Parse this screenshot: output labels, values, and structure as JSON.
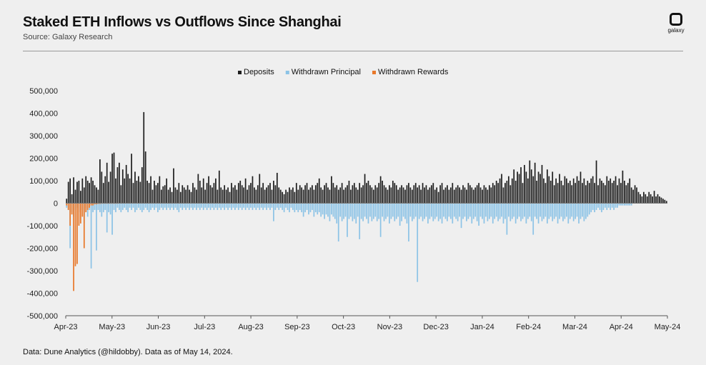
{
  "header": {
    "title": "Staked ETH Inflows vs Outflows Since Shanghai",
    "source": "Source: Galaxy Research",
    "logo_text": "galaxy"
  },
  "footnote": "Data: Dune Analytics (@hildobby). Data as of May 14, 2024.",
  "colors": {
    "deposits": "#1f1f1f",
    "withdrawn_principal": "#8cc3e6",
    "withdrawn_rewards": "#e8782a",
    "background": "#efefef"
  },
  "chart_data": {
    "type": "bar",
    "title": "Staked ETH Inflows vs Outflows Since Shanghai",
    "xlabel": "",
    "ylabel": "",
    "ylim": [
      -500000,
      500000
    ],
    "yticks": [
      500000,
      400000,
      300000,
      200000,
      100000,
      0,
      -100000,
      -200000,
      -300000,
      -400000,
      -500000
    ],
    "ytick_labels": [
      "500,000",
      "400,000",
      "300,000",
      "200,000",
      "100,000",
      "0",
      "-100,000",
      "-200,000",
      "-300,000",
      "-400,000",
      "-500,000"
    ],
    "xtick_labels": [
      "Apr-23",
      "May-23",
      "Jun-23",
      "Jul-23",
      "Aug-23",
      "Sep-23",
      "Oct-23",
      "Nov-23",
      "Dec-23",
      "Jan-24",
      "Feb-24",
      "Mar-24",
      "Apr-24",
      "May-24"
    ],
    "legend": [
      "Deposits",
      "Withdrawn Principal",
      "Withdrawn Rewards"
    ],
    "legend_position": "top-center",
    "series": [
      {
        "name": "Deposits",
        "key": "deposits",
        "color": "#1f1f1f",
        "values": [
          20000,
          95000,
          110000,
          40000,
          115000,
          60000,
          95000,
          100000,
          55000,
          110000,
          70000,
          120000,
          100000,
          90000,
          115000,
          100000,
          80000,
          70000,
          60000,
          195000,
          140000,
          90000,
          120000,
          180000,
          95000,
          140000,
          220000,
          225000,
          110000,
          160000,
          180000,
          80000,
          150000,
          110000,
          170000,
          130000,
          110000,
          220000,
          90000,
          140000,
          100000,
          120000,
          95000,
          160000,
          405000,
          230000,
          100000,
          90000,
          120000,
          60000,
          100000,
          80000,
          90000,
          120000,
          60000,
          75000,
          80000,
          110000,
          60000,
          70000,
          50000,
          155000,
          70000,
          60000,
          90000,
          50000,
          80000,
          70000,
          60000,
          80000,
          60000,
          50000,
          90000,
          70000,
          60000,
          130000,
          100000,
          70000,
          110000,
          60000,
          90000,
          120000,
          80000,
          70000,
          90000,
          110000,
          60000,
          145000,
          70000,
          60000,
          80000,
          60000,
          70000,
          50000,
          90000,
          70000,
          80000,
          60000,
          90000,
          100000,
          80000,
          70000,
          110000,
          60000,
          80000,
          90000,
          120000,
          70000,
          60000,
          80000,
          130000,
          70000,
          90000,
          60000,
          70000,
          80000,
          90000,
          60000,
          100000,
          80000,
          135000,
          70000,
          60000,
          50000,
          40000,
          60000,
          50000,
          70000,
          60000,
          70000,
          50000,
          90000,
          60000,
          80000,
          70000,
          60000,
          80000,
          90000,
          60000,
          70000,
          80000,
          60000,
          80000,
          90000,
          110000,
          70000,
          60000,
          80000,
          90000,
          70000,
          60000,
          120000,
          90000,
          70000,
          80000,
          60000,
          70000,
          90000,
          60000,
          70000,
          80000,
          100000,
          60000,
          80000,
          90000,
          70000,
          60000,
          90000,
          70000,
          80000,
          130000,
          90000,
          100000,
          80000,
          70000,
          60000,
          80000,
          70000,
          90000,
          120000,
          100000,
          80000,
          70000,
          60000,
          80000,
          70000,
          100000,
          90000,
          80000,
          60000,
          70000,
          80000,
          70000,
          60000,
          80000,
          90000,
          70000,
          60000,
          80000,
          90000,
          70000,
          80000,
          60000,
          90000,
          70000,
          80000,
          60000,
          70000,
          80000,
          90000,
          60000,
          70000,
          50000,
          80000,
          90000,
          60000,
          70000,
          80000,
          60000,
          70000,
          90000,
          60000,
          70000,
          80000,
          70000,
          60000,
          80000,
          70000,
          60000,
          90000,
          80000,
          70000,
          60000,
          70000,
          80000,
          90000,
          70000,
          60000,
          80000,
          70000,
          60000,
          80000,
          70000,
          90000,
          80000,
          100000,
          90000,
          110000,
          130000,
          70000,
          90000,
          100000,
          120000,
          80000,
          110000,
          150000,
          100000,
          140000,
          130000,
          160000,
          90000,
          170000,
          140000,
          110000,
          190000,
          150000,
          120000,
          180000,
          100000,
          140000,
          130000,
          170000,
          110000,
          90000,
          150000,
          120000,
          100000,
          140000,
          80000,
          110000,
          90000,
          130000,
          100000,
          80000,
          120000,
          110000,
          90000,
          100000,
          80000,
          110000,
          90000,
          120000,
          100000,
          140000,
          90000,
          110000,
          80000,
          100000,
          90000,
          110000,
          120000,
          90000,
          190000,
          80000,
          110000,
          100000,
          90000,
          80000,
          120000,
          100000,
          110000,
          90000,
          100000,
          120000,
          80000,
          110000,
          90000,
          145000,
          100000,
          80000,
          90000,
          110000,
          70000,
          60000,
          80000,
          70000,
          50000,
          40000,
          30000,
          50000,
          40000,
          30000,
          50000,
          40000,
          30000,
          55000,
          30000,
          40000,
          30000,
          25000,
          20000,
          15000,
          10000
        ]
      },
      {
        "name": "Withdrawn Principal",
        "key": "withdrawn_principal",
        "color": "#8cc3e6",
        "values": [
          -20000,
          -30000,
          -200000,
          -40000,
          -60000,
          -30000,
          -20000,
          -40000,
          -30000,
          -30000,
          -90000,
          -20000,
          -60000,
          -30000,
          -290000,
          -40000,
          -30000,
          -210000,
          -30000,
          -40000,
          -60000,
          -40000,
          -30000,
          -130000,
          -40000,
          -50000,
          -140000,
          -30000,
          -40000,
          -20000,
          -30000,
          -40000,
          -30000,
          -20000,
          -30000,
          -40000,
          -20000,
          -30000,
          -20000,
          -40000,
          -30000,
          -20000,
          -30000,
          -40000,
          -30000,
          -20000,
          -30000,
          -40000,
          -30000,
          -20000,
          -30000,
          -20000,
          -40000,
          -30000,
          -20000,
          -30000,
          -20000,
          -30000,
          -20000,
          -30000,
          -20000,
          -30000,
          -20000,
          -30000,
          -40000,
          -20000,
          -30000,
          -20000,
          -30000,
          -20000,
          -30000,
          -20000,
          -30000,
          -20000,
          -30000,
          -20000,
          -30000,
          -20000,
          -30000,
          -20000,
          -30000,
          -20000,
          -30000,
          -20000,
          -30000,
          -20000,
          -30000,
          -20000,
          -30000,
          -20000,
          -30000,
          -20000,
          -30000,
          -20000,
          -30000,
          -20000,
          -30000,
          -20000,
          -30000,
          -20000,
          -30000,
          -20000,
          -30000,
          -20000,
          -30000,
          -20000,
          -30000,
          -20000,
          -30000,
          -20000,
          -30000,
          -20000,
          -30000,
          -20000,
          -30000,
          -20000,
          -30000,
          -20000,
          -80000,
          -30000,
          -20000,
          -30000,
          -20000,
          -30000,
          -40000,
          -20000,
          -30000,
          -40000,
          -20000,
          -30000,
          -40000,
          -30000,
          -40000,
          -30000,
          -40000,
          -60000,
          -40000,
          -30000,
          -50000,
          -40000,
          -30000,
          -60000,
          -40000,
          -50000,
          -40000,
          -60000,
          -50000,
          -70000,
          -50000,
          -60000,
          -80000,
          -50000,
          -60000,
          -70000,
          -90000,
          -170000,
          -60000,
          -80000,
          -70000,
          -60000,
          -150000,
          -70000,
          -60000,
          -80000,
          -70000,
          -90000,
          -60000,
          -160000,
          -70000,
          -80000,
          -60000,
          -70000,
          -90000,
          -60000,
          -80000,
          -70000,
          -60000,
          -80000,
          -70000,
          -150000,
          -60000,
          -80000,
          -70000,
          -60000,
          -90000,
          -70000,
          -60000,
          -80000,
          -70000,
          -60000,
          -100000,
          -80000,
          -60000,
          -70000,
          -90000,
          -170000,
          -60000,
          -80000,
          -70000,
          -60000,
          -350000,
          -70000,
          -60000,
          -80000,
          -70000,
          -60000,
          -90000,
          -70000,
          -60000,
          -80000,
          -70000,
          -60000,
          -80000,
          -70000,
          -90000,
          -60000,
          -70000,
          -80000,
          -60000,
          -70000,
          -90000,
          -60000,
          -70000,
          -80000,
          -60000,
          -110000,
          -70000,
          -60000,
          -80000,
          -70000,
          -60000,
          -90000,
          -70000,
          -60000,
          -80000,
          -100000,
          -60000,
          -70000,
          -90000,
          -60000,
          -80000,
          -70000,
          -60000,
          -90000,
          -70000,
          -60000,
          -80000,
          -70000,
          -60000,
          -90000,
          -70000,
          -140000,
          -60000,
          -80000,
          -70000,
          -60000,
          -90000,
          -70000,
          -60000,
          -80000,
          -70000,
          -60000,
          -90000,
          -70000,
          -60000,
          -80000,
          -140000,
          -60000,
          -70000,
          -90000,
          -60000,
          -80000,
          -70000,
          -60000,
          -90000,
          -70000,
          -60000,
          -80000,
          -70000,
          -60000,
          -90000,
          -70000,
          -60000,
          -80000,
          -70000,
          -60000,
          -90000,
          -70000,
          -60000,
          -80000,
          -70000,
          -60000,
          -90000,
          -70000,
          -60000,
          -80000,
          -70000,
          -60000,
          -50000,
          -40000,
          -30000,
          -40000,
          -30000,
          -20000,
          -30000,
          -40000,
          -30000,
          -20000,
          -30000,
          -20000,
          -30000,
          -20000,
          -30000,
          -20000,
          -20000,
          -10000,
          -10000,
          -10000,
          -10000,
          -10000,
          -10000,
          -10000,
          -10000
        ]
      },
      {
        "name": "Withdrawn Rewards",
        "key": "withdrawn_rewards",
        "color": "#e8782a",
        "values": [
          -10000,
          -30000,
          -100000,
          -50000,
          -390000,
          -280000,
          -270000,
          -100000,
          -90000,
          -60000,
          -200000,
          -40000,
          -30000,
          -20000,
          -10000,
          -10000,
          -5000,
          -5000,
          -3000,
          -3000,
          -2000,
          -2000,
          -2000,
          -2000,
          -2000,
          -2000,
          -2000,
          -2000,
          -2000,
          -2000
        ]
      }
    ]
  }
}
